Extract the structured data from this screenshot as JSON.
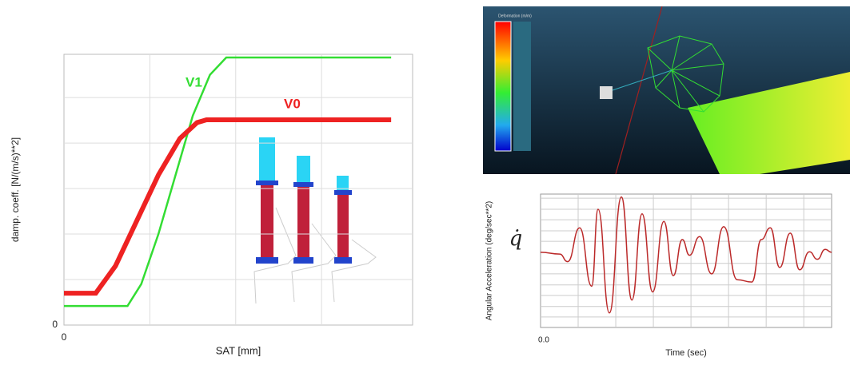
{
  "chart_data": [
    {
      "type": "line",
      "ylabel": "damp. coeff. [N/(m/s)**2]",
      "xlabel": "SAT [mm]",
      "xlim": [
        0,
        4.06
      ],
      "ylim": [
        0,
        5.95
      ],
      "xticks": [
        0
      ],
      "yticks": [
        0
      ],
      "xgrid": [
        1,
        2,
        3
      ],
      "ygrid": [
        1,
        2,
        3,
        4,
        5
      ],
      "grid": true,
      "series": [
        {
          "name": "V1",
          "color": "#33dd33",
          "marker": "dot",
          "x": [
            0,
            0.74,
            0.9,
            1.1,
            1.3,
            1.5,
            1.7,
            1.89,
            3.81
          ],
          "values": [
            0.42,
            0.42,
            0.9,
            2.0,
            3.3,
            4.6,
            5.5,
            5.88,
            5.88
          ]
        },
        {
          "name": "V0",
          "color": "#ee2222",
          "marker": "cross",
          "x": [
            0,
            0.37,
            0.6,
            0.85,
            1.1,
            1.35,
            1.55,
            1.66,
            3.81
          ],
          "values": [
            0.7,
            0.7,
            1.3,
            2.3,
            3.3,
            4.1,
            4.45,
            4.51,
            4.51
          ]
        }
      ]
    },
    {
      "type": "line",
      "ylabel": "Angular Acceleration (deg/sec**2)",
      "annotation": "q̇",
      "xlabel": "Time (sec)",
      "xlim": [
        0,
        7.74
      ],
      "ylim": [
        -1.29,
        1
      ],
      "xticks": [
        {
          "value": 0,
          "label": "0.0"
        }
      ],
      "yticks": [],
      "xgrid": [
        1,
        2,
        3,
        4,
        5,
        6,
        7
      ],
      "ygrid": [
        -1.11,
        -0.93,
        -0.74,
        -0.56,
        -0.37,
        -0.19,
        0.19,
        0.37,
        0.56,
        0.74,
        0.93
      ],
      "grid": true,
      "series": [
        {
          "color": "#bb2a2a",
          "marker": "none",
          "x": [
            0,
            0.51,
            0.72,
            1.04,
            1.36,
            1.53,
            1.83,
            2.15,
            2.43,
            2.7,
            2.98,
            3.28,
            3.53,
            3.77,
            3.96,
            4.23,
            4.55,
            4.87,
            5.23,
            5.62,
            5.87,
            6.11,
            6.36,
            6.64,
            6.89,
            7.15,
            7.36,
            7.57,
            7.74
          ],
          "values": [
            0,
            -0.03,
            -0.16,
            0.42,
            -0.58,
            0.74,
            -1.04,
            0.95,
            -0.82,
            0.66,
            -0.68,
            0.53,
            -0.4,
            0.22,
            -0.05,
            0.27,
            -0.37,
            0.44,
            -0.47,
            -0.51,
            0.22,
            0.42,
            -0.26,
            0.33,
            -0.3,
            0.01,
            -0.12,
            0.05,
            0
          ]
        }
      ]
    }
  ],
  "viewport": {
    "legend_title": "Deformation (m/m)"
  }
}
